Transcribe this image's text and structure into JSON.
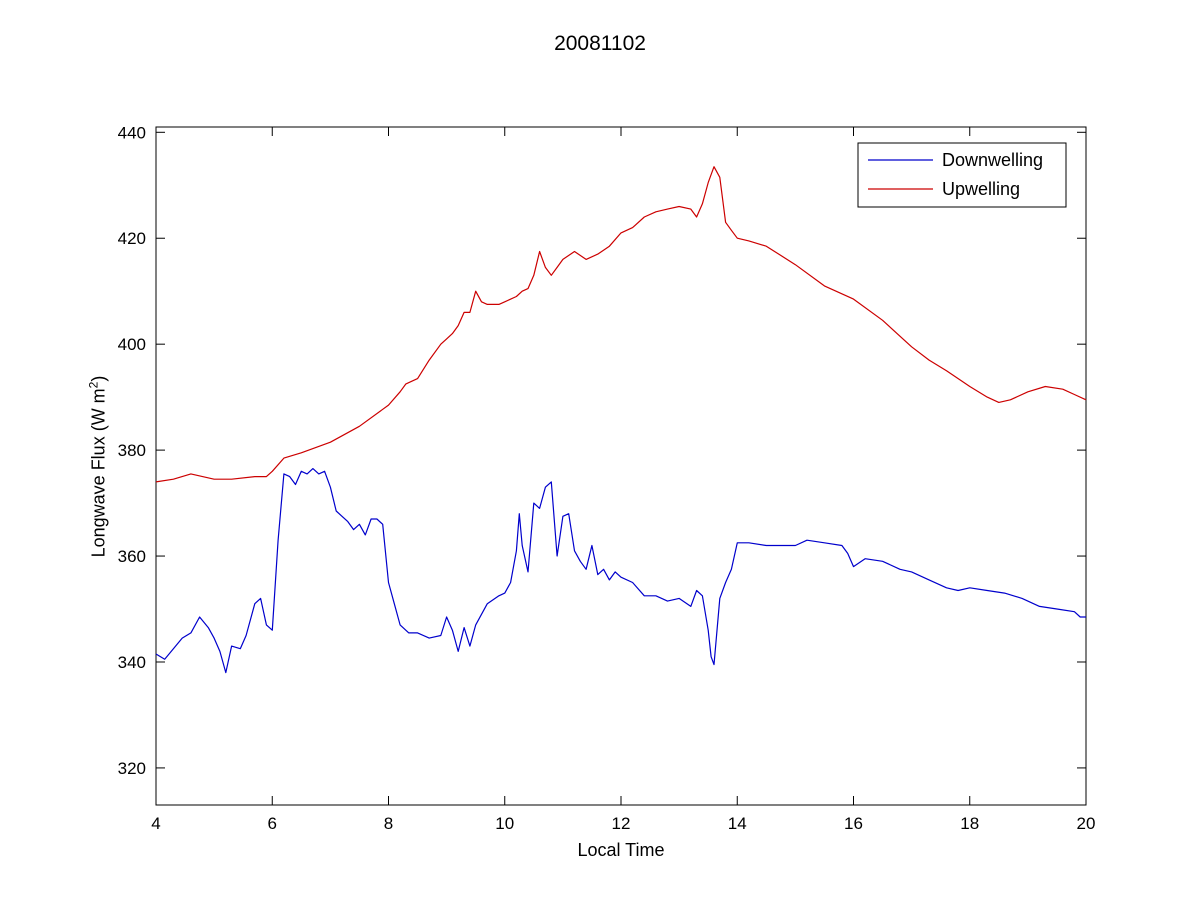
{
  "chart_data": {
    "type": "line",
    "title": "20081102",
    "xlabel": "Local Time",
    "ylabel_main": "Longwave Flux (W m",
    "ylabel_sup": "2",
    "ylabel_end": ")",
    "xlim": [
      4,
      20
    ],
    "ylim": [
      313,
      441
    ],
    "xticks": [
      4,
      6,
      8,
      10,
      12,
      14,
      16,
      18,
      20
    ],
    "yticks": [
      320,
      340,
      360,
      380,
      400,
      420,
      440
    ],
    "grid": false,
    "legend_position": "top-right",
    "series": [
      {
        "name": "Downwelling",
        "color": "#0000cc",
        "x": [
          4.0,
          4.15,
          4.3,
          4.45,
          4.6,
          4.75,
          4.9,
          5.0,
          5.1,
          5.2,
          5.3,
          5.45,
          5.55,
          5.7,
          5.8,
          5.9,
          6.0,
          6.1,
          6.2,
          6.3,
          6.4,
          6.5,
          6.6,
          6.7,
          6.8,
          6.9,
          7.0,
          7.1,
          7.2,
          7.3,
          7.4,
          7.5,
          7.6,
          7.7,
          7.8,
          7.9,
          8.0,
          8.1,
          8.2,
          8.35,
          8.5,
          8.7,
          8.9,
          9.0,
          9.1,
          9.2,
          9.3,
          9.4,
          9.5,
          9.7,
          9.9,
          10.0,
          10.1,
          10.2,
          10.25,
          10.3,
          10.4,
          10.5,
          10.6,
          10.7,
          10.8,
          10.9,
          11.0,
          11.1,
          11.2,
          11.3,
          11.4,
          11.5,
          11.6,
          11.7,
          11.8,
          11.9,
          12.0,
          12.2,
          12.4,
          12.6,
          12.8,
          13.0,
          13.2,
          13.3,
          13.4,
          13.5,
          13.55,
          13.6,
          13.7,
          13.8,
          13.9,
          14.0,
          14.2,
          14.5,
          14.8,
          15.0,
          15.2,
          15.5,
          15.8,
          15.9,
          16.0,
          16.2,
          16.5,
          16.8,
          17.0,
          17.3,
          17.6,
          17.8,
          18.0,
          18.3,
          18.6,
          18.9,
          19.2,
          19.5,
          19.8,
          19.9,
          20.0
        ],
        "values": [
          341.5,
          340.5,
          342.5,
          344.5,
          345.5,
          348.5,
          346.5,
          344.5,
          342.0,
          338.0,
          343.0,
          342.5,
          345.0,
          351.0,
          352.0,
          347.0,
          346.0,
          363.0,
          375.5,
          375.0,
          373.5,
          376.0,
          375.5,
          376.5,
          375.5,
          376.0,
          373.0,
          368.5,
          367.5,
          366.5,
          365.0,
          366.0,
          364.0,
          367.0,
          367.0,
          366.0,
          355.0,
          351.0,
          347.0,
          345.5,
          345.5,
          344.5,
          345.0,
          348.5,
          346.0,
          342.0,
          346.5,
          343.0,
          347.0,
          351.0,
          352.5,
          353.0,
          355.0,
          361.0,
          368.0,
          362.0,
          357.0,
          370.0,
          369.0,
          373.0,
          374.0,
          360.0,
          367.5,
          368.0,
          361.0,
          359.0,
          357.5,
          362.0,
          356.5,
          357.5,
          355.5,
          357.0,
          356.0,
          355.0,
          352.5,
          352.5,
          351.5,
          352.0,
          350.5,
          353.5,
          352.5,
          346.0,
          341.0,
          339.5,
          352.0,
          355.0,
          357.5,
          362.5,
          362.5,
          362.0,
          362.0,
          362.0,
          363.0,
          362.5,
          362.0,
          360.5,
          358.0,
          359.5,
          359.0,
          357.5,
          357.0,
          355.5,
          354.0,
          353.5,
          354.0,
          353.5,
          353.0,
          352.0,
          350.5,
          350.0,
          349.5,
          348.5,
          348.5
        ]
      },
      {
        "name": "Upwelling",
        "color": "#cc0000",
        "x": [
          4.0,
          4.3,
          4.6,
          5.0,
          5.3,
          5.7,
          5.9,
          6.0,
          6.2,
          6.5,
          7.0,
          7.5,
          8.0,
          8.2,
          8.3,
          8.5,
          8.7,
          8.9,
          9.0,
          9.1,
          9.2,
          9.3,
          9.4,
          9.5,
          9.6,
          9.7,
          9.9,
          10.0,
          10.2,
          10.3,
          10.4,
          10.5,
          10.6,
          10.7,
          10.8,
          10.9,
          11.0,
          11.2,
          11.4,
          11.6,
          11.8,
          12.0,
          12.2,
          12.4,
          12.6,
          12.8,
          13.0,
          13.2,
          13.3,
          13.4,
          13.5,
          13.6,
          13.7,
          13.8,
          13.9,
          14.0,
          14.2,
          14.5,
          15.0,
          15.5,
          16.0,
          16.5,
          17.0,
          17.3,
          17.6,
          18.0,
          18.3,
          18.5,
          18.7,
          19.0,
          19.3,
          19.6,
          19.8,
          20.0
        ],
        "values": [
          374.0,
          374.5,
          375.5,
          374.5,
          374.5,
          375.0,
          375.0,
          376.0,
          378.5,
          379.5,
          381.5,
          384.5,
          388.5,
          391.0,
          392.5,
          393.5,
          397.0,
          400.0,
          401.0,
          402.0,
          403.5,
          406.0,
          406.0,
          410.0,
          408.0,
          407.5,
          407.5,
          408.0,
          409.0,
          410.0,
          410.5,
          413.0,
          417.5,
          414.5,
          413.0,
          414.5,
          416.0,
          417.5,
          416.0,
          417.0,
          418.5,
          421.0,
          422.0,
          424.0,
          425.0,
          425.5,
          426.0,
          425.5,
          424.0,
          426.5,
          430.5,
          433.5,
          431.5,
          423.0,
          421.5,
          420.0,
          419.5,
          418.5,
          415.0,
          411.0,
          408.5,
          404.5,
          399.5,
          397.0,
          395.0,
          392.0,
          390.0,
          389.0,
          389.5,
          391.0,
          392.0,
          391.5,
          390.5,
          389.5
        ]
      }
    ]
  }
}
